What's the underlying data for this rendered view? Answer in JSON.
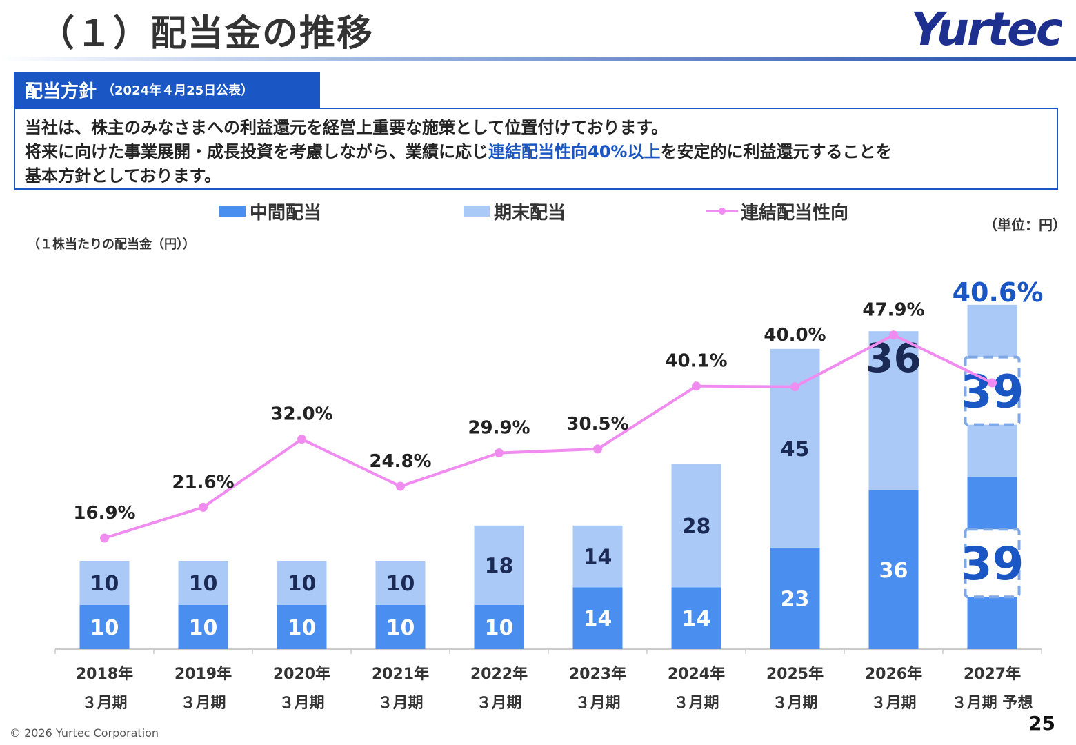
{
  "header": {
    "title": "（１）配当金の推移",
    "logo_text": "Yurtec"
  },
  "policy": {
    "tab_title": "配当方針",
    "tab_date": "（2024年４月25日公表）",
    "line1": "当社は、株主のみなさまへの利益還元を経営上重要な施策として位置付けております。",
    "line2_pre": "将来に向けた事業展開・成長投資を考慮しながら、業績に応じ",
    "line2_highlight": "連結配当性向40%以上",
    "line2_post": "を安定的に利益還元することを",
    "line3": "基本方針としております。"
  },
  "legend": {
    "interim": "中間配当",
    "year_end": "期末配当",
    "payout": "連結配当性向"
  },
  "unit_label": "（単位：円）",
  "per_share_label": "（１株当たりの配当金（円））",
  "footer": {
    "copyright": "© 2026 Yurtec Corporation",
    "page_number": "25"
  },
  "colors": {
    "interim": "#4a8ef0",
    "year_end": "#aac9f6",
    "payout_line": "#f08cf0",
    "accent_blue": "#1a56c4"
  },
  "chart_data": {
    "type": "bar",
    "stacked": true,
    "categories": [
      [
        "2018年",
        "３月期"
      ],
      [
        "2019年",
        "３月期"
      ],
      [
        "2020年",
        "３月期"
      ],
      [
        "2021年",
        "３月期"
      ],
      [
        "2022年",
        "３月期"
      ],
      [
        "2023年",
        "３月期"
      ],
      [
        "2024年",
        "３月期"
      ],
      [
        "2025年",
        "３月期"
      ],
      [
        "2026年",
        "３月期"
      ],
      [
        "2027年",
        "３月期 予想"
      ]
    ],
    "series": [
      {
        "name": "中間配当",
        "values": [
          10,
          10,
          10,
          10,
          10,
          14,
          14,
          23,
          36,
          39
        ]
      },
      {
        "name": "期末配当",
        "values": [
          10,
          10,
          10,
          10,
          18,
          14,
          28,
          45,
          36,
          39
        ]
      }
    ],
    "payout_ratio": {
      "name": "連結配当性向",
      "values": [
        16.9,
        21.6,
        32.0,
        24.8,
        29.9,
        30.5,
        40.1,
        40.0,
        47.9,
        40.6
      ],
      "labels": [
        "16.9%",
        "21.6%",
        "32.0%",
        "24.8%",
        "29.9%",
        "30.5%",
        "40.1%",
        "40.0%",
        "47.9%",
        "40.6%"
      ]
    },
    "forecast_index": 9,
    "emphasized_indices": [
      8,
      9
    ]
  }
}
